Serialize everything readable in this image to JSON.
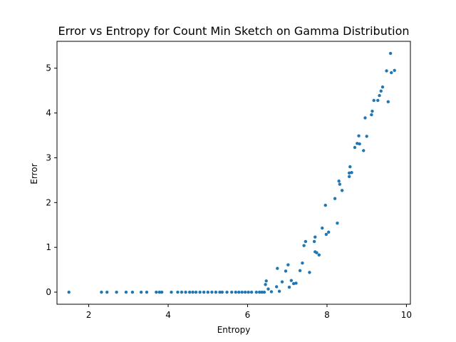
{
  "chart_data": {
    "type": "scatter",
    "title": "Error vs Entropy for Count Min Sketch on Gamma Distribution",
    "xlabel": "Entropy",
    "ylabel": "Error",
    "xlim": [
      1.2,
      10.1
    ],
    "ylim": [
      -0.27,
      5.6
    ],
    "xticks": [
      2,
      4,
      6,
      8,
      10
    ],
    "yticks": [
      0,
      1,
      2,
      3,
      4,
      5
    ],
    "grid": false,
    "marker_color": "#1f77b4",
    "points": [
      [
        1.5,
        0.0
      ],
      [
        2.32,
        0.0
      ],
      [
        2.46,
        0.0
      ],
      [
        2.7,
        0.0
      ],
      [
        2.94,
        0.0
      ],
      [
        3.1,
        0.0
      ],
      [
        3.32,
        0.0
      ],
      [
        3.46,
        0.0
      ],
      [
        3.7,
        0.0
      ],
      [
        3.78,
        0.0
      ],
      [
        3.84,
        0.0
      ],
      [
        4.08,
        0.0
      ],
      [
        4.24,
        0.0
      ],
      [
        4.34,
        0.0
      ],
      [
        4.44,
        0.0
      ],
      [
        4.54,
        0.0
      ],
      [
        4.62,
        0.0
      ],
      [
        4.7,
        0.0
      ],
      [
        4.8,
        0.0
      ],
      [
        4.9,
        0.0
      ],
      [
        5.0,
        0.0
      ],
      [
        5.1,
        0.0
      ],
      [
        5.2,
        0.0
      ],
      [
        5.3,
        0.0
      ],
      [
        5.36,
        0.0
      ],
      [
        5.48,
        0.0
      ],
      [
        5.6,
        0.0
      ],
      [
        5.7,
        0.0
      ],
      [
        5.78,
        0.0
      ],
      [
        5.86,
        0.0
      ],
      [
        5.94,
        0.0
      ],
      [
        6.02,
        0.0
      ],
      [
        6.1,
        0.0
      ],
      [
        6.22,
        0.0
      ],
      [
        6.3,
        0.0
      ],
      [
        6.36,
        0.0
      ],
      [
        6.42,
        0.0
      ],
      [
        6.45,
        0.17
      ],
      [
        6.47,
        0.25
      ],
      [
        6.52,
        0.07
      ],
      [
        6.6,
        0.01
      ],
      [
        6.73,
        0.12
      ],
      [
        6.75,
        0.53
      ],
      [
        6.8,
        0.02
      ],
      [
        6.87,
        0.23
      ],
      [
        6.96,
        0.47
      ],
      [
        7.02,
        0.61
      ],
      [
        7.05,
        0.11
      ],
      [
        7.1,
        0.26
      ],
      [
        7.16,
        0.19
      ],
      [
        7.22,
        0.2
      ],
      [
        7.32,
        0.48
      ],
      [
        7.38,
        0.65
      ],
      [
        7.42,
        1.04
      ],
      [
        7.46,
        1.13
      ],
      [
        7.56,
        0.44
      ],
      [
        7.68,
        1.13
      ],
      [
        7.7,
        1.23
      ],
      [
        7.7,
        0.9
      ],
      [
        7.74,
        0.88
      ],
      [
        7.8,
        0.83
      ],
      [
        7.88,
        1.43
      ],
      [
        7.96,
        1.94
      ],
      [
        7.98,
        1.29
      ],
      [
        8.04,
        1.34
      ],
      [
        8.2,
        2.09
      ],
      [
        8.26,
        1.54
      ],
      [
        8.3,
        2.48
      ],
      [
        8.32,
        2.41
      ],
      [
        8.38,
        2.27
      ],
      [
        8.56,
        2.58
      ],
      [
        8.56,
        2.66
      ],
      [
        8.58,
        2.8
      ],
      [
        8.62,
        2.67
      ],
      [
        8.7,
        3.23
      ],
      [
        8.76,
        3.32
      ],
      [
        8.8,
        3.49
      ],
      [
        8.82,
        3.31
      ],
      [
        8.92,
        3.16
      ],
      [
        8.96,
        3.89
      ],
      [
        9.0,
        3.48
      ],
      [
        9.12,
        3.96
      ],
      [
        9.14,
        4.04
      ],
      [
        9.18,
        4.28
      ],
      [
        9.28,
        4.28
      ],
      [
        9.32,
        4.39
      ],
      [
        9.36,
        4.49
      ],
      [
        9.4,
        4.58
      ],
      [
        9.5,
        4.94
      ],
      [
        9.54,
        4.25
      ],
      [
        9.6,
        5.33
      ],
      [
        9.62,
        4.9
      ],
      [
        9.7,
        4.95
      ]
    ]
  }
}
